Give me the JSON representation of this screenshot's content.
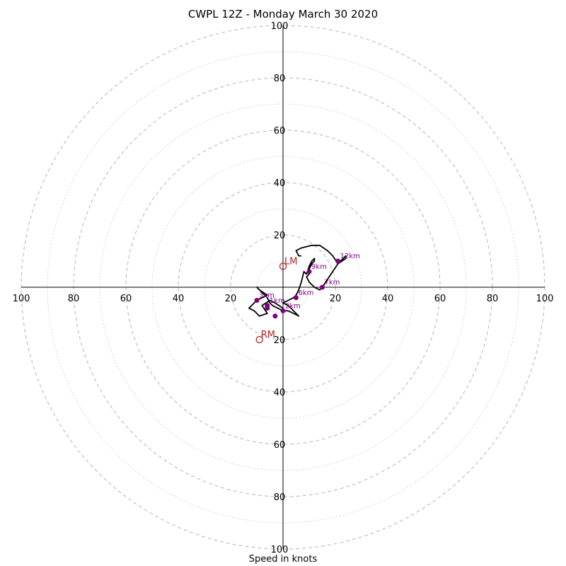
{
  "title": "CWPL 12Z - Monday March 30 2020",
  "chart_data": {
    "type": "hodograph",
    "title": "CWPL 12Z - Monday March 30 2020",
    "xlabel": "Speed in knots",
    "ylabel": "",
    "xlim": [
      -100,
      100
    ],
    "ylim": [
      -100,
      100
    ],
    "ring_step": 10,
    "tick_values": [
      20,
      40,
      60,
      80,
      100
    ],
    "x_tick_labels": [
      "100",
      "80",
      "60",
      "40",
      "20",
      "20",
      "40",
      "60",
      "80",
      "100"
    ],
    "y_tick_labels": [
      "100",
      "80",
      "60",
      "40",
      "20",
      "20",
      "40",
      "60",
      "80",
      "100"
    ],
    "trace": [
      [
        0,
        -8
      ],
      [
        -3,
        -6
      ],
      [
        -5,
        -5
      ],
      [
        -8,
        -7
      ],
      [
        -6,
        -10
      ],
      [
        -9,
        -11
      ],
      [
        -11,
        -9
      ],
      [
        -13,
        -8
      ],
      [
        -10,
        -5
      ],
      [
        -8,
        -4
      ],
      [
        -6,
        -3
      ],
      [
        -9,
        -1
      ],
      [
        -10,
        0
      ],
      [
        -8,
        -2
      ],
      [
        -6,
        -4
      ],
      [
        -5,
        -6
      ],
      [
        -4,
        -7
      ],
      [
        -2,
        -8
      ],
      [
        0,
        -9
      ],
      [
        2,
        -9
      ],
      [
        4,
        -10
      ],
      [
        6,
        -11
      ],
      [
        4,
        -9
      ],
      [
        2,
        -7
      ],
      [
        0,
        -6
      ],
      [
        2,
        -5
      ],
      [
        4,
        -4
      ],
      [
        5,
        -3
      ],
      [
        6,
        -1
      ],
      [
        7,
        2
      ],
      [
        8,
        6
      ],
      [
        9,
        5
      ],
      [
        10,
        8
      ],
      [
        11,
        10
      ],
      [
        12,
        11
      ],
      [
        12,
        10
      ],
      [
        11,
        9
      ],
      [
        10,
        7
      ],
      [
        10,
        5
      ],
      [
        9,
        4
      ],
      [
        10,
        2
      ],
      [
        12,
        0
      ],
      [
        14,
        -1
      ],
      [
        15,
        0
      ],
      [
        17,
        3
      ],
      [
        19,
        6
      ],
      [
        21,
        9
      ],
      [
        23,
        11
      ],
      [
        24,
        12
      ],
      [
        24,
        11
      ],
      [
        21,
        9
      ],
      [
        19,
        12
      ],
      [
        17,
        14
      ],
      [
        14,
        16
      ],
      [
        11,
        16
      ],
      [
        7,
        15
      ],
      [
        5,
        14
      ],
      [
        6,
        12
      ],
      [
        7,
        12
      ]
    ],
    "levels": [
      {
        "label": "1km",
        "u": -6,
        "v": -7
      },
      {
        "label": "2km",
        "u": 0,
        "v": -9
      },
      {
        "label": "3km",
        "u": -10,
        "v": -5
      },
      {
        "label": "",
        "u": -3,
        "v": -11
      },
      {
        "label": "",
        "u": -6,
        "v": -8
      },
      {
        "label": "6km",
        "u": 5,
        "v": -4
      },
      {
        "label": "7km",
        "u": 15,
        "v": 0
      },
      {
        "label": "9km",
        "u": 10,
        "v": 6
      },
      {
        "label": "12km",
        "u": 21,
        "v": 10
      }
    ],
    "markers": [
      {
        "label": "LM",
        "u": 0,
        "v": 8
      },
      {
        "label": "RM",
        "u": -9,
        "v": -20
      }
    ],
    "colors": {
      "trace": "#000000",
      "levels": "#800080",
      "markers": "#b22222",
      "grid": "#bbbbbb"
    }
  }
}
